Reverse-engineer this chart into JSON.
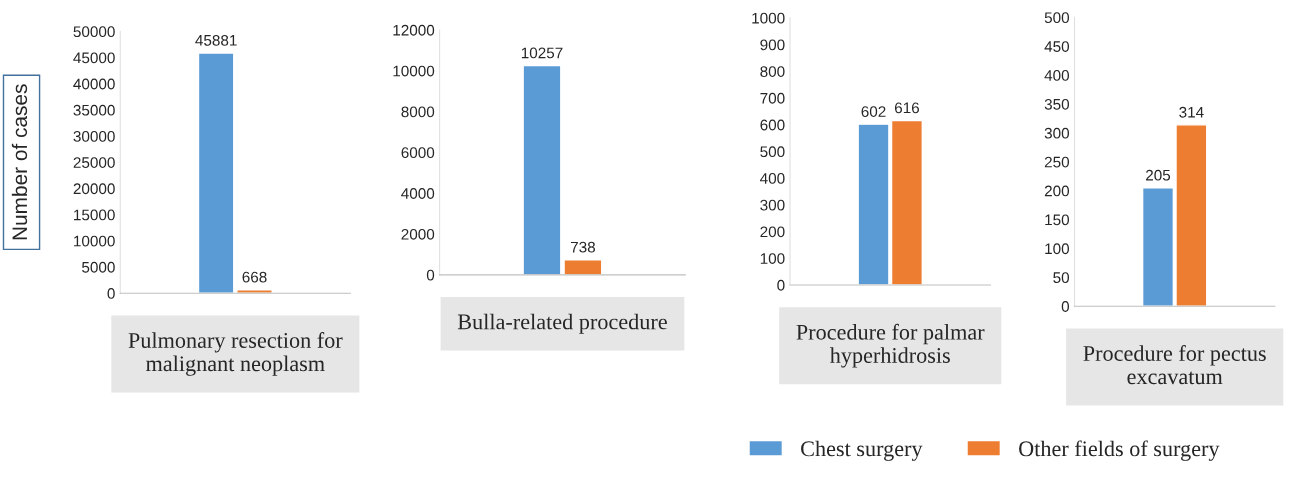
{
  "chart_data": [
    {
      "type": "bar",
      "ylabel": "Number of cases",
      "categories": [
        "Pulmonary resection for\nmalignant neoplasm"
      ],
      "ylim": [
        0,
        50000
      ],
      "yticks": [
        0,
        5000,
        10000,
        15000,
        20000,
        25000,
        30000,
        35000,
        40000,
        45000,
        50000
      ],
      "data_labels": true,
      "series": [
        {
          "color": "#5b9bd5",
          "values": [
            45881
          ]
        },
        {
          "color": "#ed7d31",
          "values": [
            668
          ]
        }
      ]
    },
    {
      "type": "bar",
      "categories": [
        "Bulla-related procedure"
      ],
      "ylim": [
        0,
        12000
      ],
      "yticks": [
        0,
        2000,
        4000,
        6000,
        8000,
        10000,
        12000
      ],
      "data_labels": true,
      "series": [
        {
          "color": "#5b9bd5",
          "values": [
            10257
          ]
        },
        {
          "color": "#ed7d31",
          "values": [
            738
          ]
        }
      ]
    },
    {
      "type": "bar",
      "categories": [
        "Procedure for palmar\nhyperhidrosis"
      ],
      "ylim": [
        0,
        1000
      ],
      "yticks": [
        0,
        100,
        200,
        300,
        400,
        500,
        600,
        700,
        800,
        900,
        1000
      ],
      "data_labels": true,
      "series": [
        {
          "color": "#5b9bd5",
          "values": [
            602
          ]
        },
        {
          "color": "#ed7d31",
          "values": [
            616
          ]
        }
      ]
    },
    {
      "type": "bar",
      "categories": [
        "Procedure for pectus\nexcavatum"
      ],
      "ylim": [
        0,
        500
      ],
      "yticks": [
        0,
        50,
        100,
        150,
        200,
        250,
        300,
        350,
        400,
        450,
        500
      ],
      "data_labels": true,
      "legend": "bottom",
      "series": [
        {
          "name": "Chest surgery",
          "color": "#5b9bd5",
          "values": [
            205
          ]
        },
        {
          "name": "Other fields of surgery",
          "color": "#ed7d31",
          "values": [
            314
          ]
        }
      ]
    }
  ]
}
